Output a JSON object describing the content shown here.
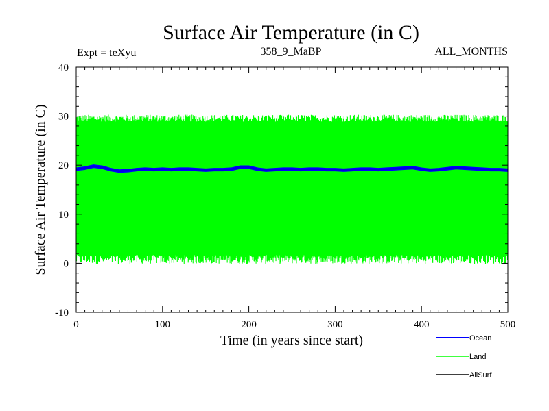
{
  "chart_data": {
    "type": "line",
    "title": "Surface Air Temperature (in C)",
    "experiment_label": "Expt = teXyu",
    "period_label": "358_9_MaBP",
    "months_label": "ALL_MONTHS",
    "xlabel": "Time (in years since start)",
    "ylabel": "Surface Air Temperature (in C)",
    "xlim": [
      0,
      500
    ],
    "ylim": [
      -10,
      40
    ],
    "x_ticks": [
      0,
      100,
      200,
      300,
      400,
      500
    ],
    "y_ticks": [
      -10,
      0,
      10,
      20,
      30,
      40
    ],
    "grid": false,
    "legend_position": "bottom-right",
    "series": [
      {
        "name": "Ocean",
        "color": "#0000ff",
        "x": [
          0,
          10,
          20,
          30,
          40,
          50,
          60,
          70,
          80,
          90,
          100,
          110,
          120,
          130,
          140,
          150,
          160,
          170,
          180,
          190,
          200,
          210,
          220,
          230,
          240,
          250,
          260,
          270,
          280,
          290,
          300,
          310,
          320,
          330,
          340,
          350,
          360,
          370,
          380,
          390,
          400,
          410,
          420,
          430,
          440,
          450,
          460,
          470,
          480,
          490,
          500
        ],
        "values": [
          19.2,
          19.4,
          19.8,
          19.6,
          19.1,
          18.8,
          18.9,
          19.1,
          19.2,
          19.1,
          19.2,
          19.1,
          19.2,
          19.2,
          19.1,
          19.0,
          19.1,
          19.1,
          19.2,
          19.6,
          19.6,
          19.2,
          19.0,
          19.1,
          19.2,
          19.2,
          19.1,
          19.2,
          19.2,
          19.1,
          19.1,
          19.0,
          19.1,
          19.2,
          19.2,
          19.1,
          19.2,
          19.3,
          19.4,
          19.5,
          19.2,
          19.0,
          19.1,
          19.3,
          19.5,
          19.4,
          19.3,
          19.2,
          19.1,
          19.1,
          19.0
        ]
      },
      {
        "name": "Land",
        "color": "#00ff00",
        "x": [
          0,
          500
        ],
        "upper_envelope": [
          29.6,
          29.6
        ],
        "lower_envelope": [
          0.8,
          0.8
        ],
        "note_values": "annual cycle oscillating between ~0.8 and ~29.6"
      },
      {
        "name": "AllSurf",
        "color": "#000000",
        "x": [],
        "values": []
      }
    ]
  }
}
